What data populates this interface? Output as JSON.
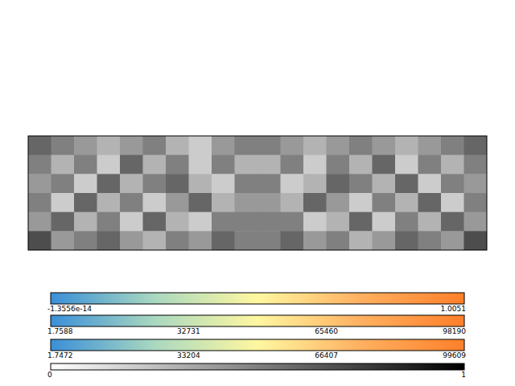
{
  "chart_data": {
    "type": "heatmap",
    "tick_labels": false,
    "cells": [
      [
        0.6,
        0.5,
        0.4,
        0.3,
        0.4,
        0.5,
        0.3,
        0.2,
        0.4,
        0.5,
        0.5,
        0.4,
        0.3,
        0.4,
        0.5,
        0.4,
        0.3,
        0.4,
        0.5,
        0.6
      ],
      [
        0.5,
        0.3,
        0.5,
        0.2,
        0.6,
        0.3,
        0.5,
        0.2,
        0.5,
        0.3,
        0.3,
        0.5,
        0.2,
        0.5,
        0.3,
        0.6,
        0.2,
        0.5,
        0.3,
        0.5
      ],
      [
        0.4,
        0.5,
        0.2,
        0.6,
        0.3,
        0.5,
        0.6,
        0.3,
        0.2,
        0.5,
        0.5,
        0.2,
        0.3,
        0.6,
        0.5,
        0.3,
        0.6,
        0.2,
        0.5,
        0.4
      ],
      [
        0.5,
        0.2,
        0.6,
        0.3,
        0.5,
        0.2,
        0.4,
        0.6,
        0.3,
        0.4,
        0.4,
        0.3,
        0.6,
        0.4,
        0.2,
        0.5,
        0.3,
        0.6,
        0.2,
        0.5
      ],
      [
        0.4,
        0.6,
        0.3,
        0.5,
        0.2,
        0.6,
        0.3,
        0.2,
        0.5,
        0.5,
        0.5,
        0.5,
        0.2,
        0.3,
        0.6,
        0.2,
        0.5,
        0.3,
        0.6,
        0.4
      ],
      [
        0.7,
        0.4,
        0.5,
        0.6,
        0.4,
        0.3,
        0.5,
        0.4,
        0.6,
        0.5,
        0.5,
        0.6,
        0.4,
        0.5,
        0.3,
        0.4,
        0.6,
        0.5,
        0.4,
        0.7
      ]
    ],
    "colorbars": [
      {
        "range": [
          -1.3556e-14,
          1.0051
        ],
        "ticks": [
          {
            "value": -1.3556e-14,
            "label": "-1.3556e-14"
          },
          1.0051
        ],
        "colors": [
          "#3a8fd8",
          "#a9d8c0",
          "#fff7a0",
          "#ffb060",
          "#ff7f2a"
        ]
      },
      {
        "range": [
          1.7588,
          98190
        ],
        "ticks": [
          1.7588,
          32731,
          65460,
          98190
        ],
        "colors": [
          "#3a8fd8",
          "#a9d8c0",
          "#fff7a0",
          "#ffb060",
          "#ff7f2a"
        ]
      },
      {
        "range": [
          1.7472,
          99609
        ],
        "ticks": [
          1.7472,
          33204,
          66407,
          99609
        ],
        "colors": [
          "#3a8fd8",
          "#a9d8c0",
          "#fff7a0",
          "#ffb060",
          "#ff7f2a"
        ]
      },
      {
        "range": [
          0,
          1
        ],
        "ticks": [
          0,
          1
        ],
        "colors": [
          "#ffffff",
          "#000000"
        ]
      }
    ]
  }
}
